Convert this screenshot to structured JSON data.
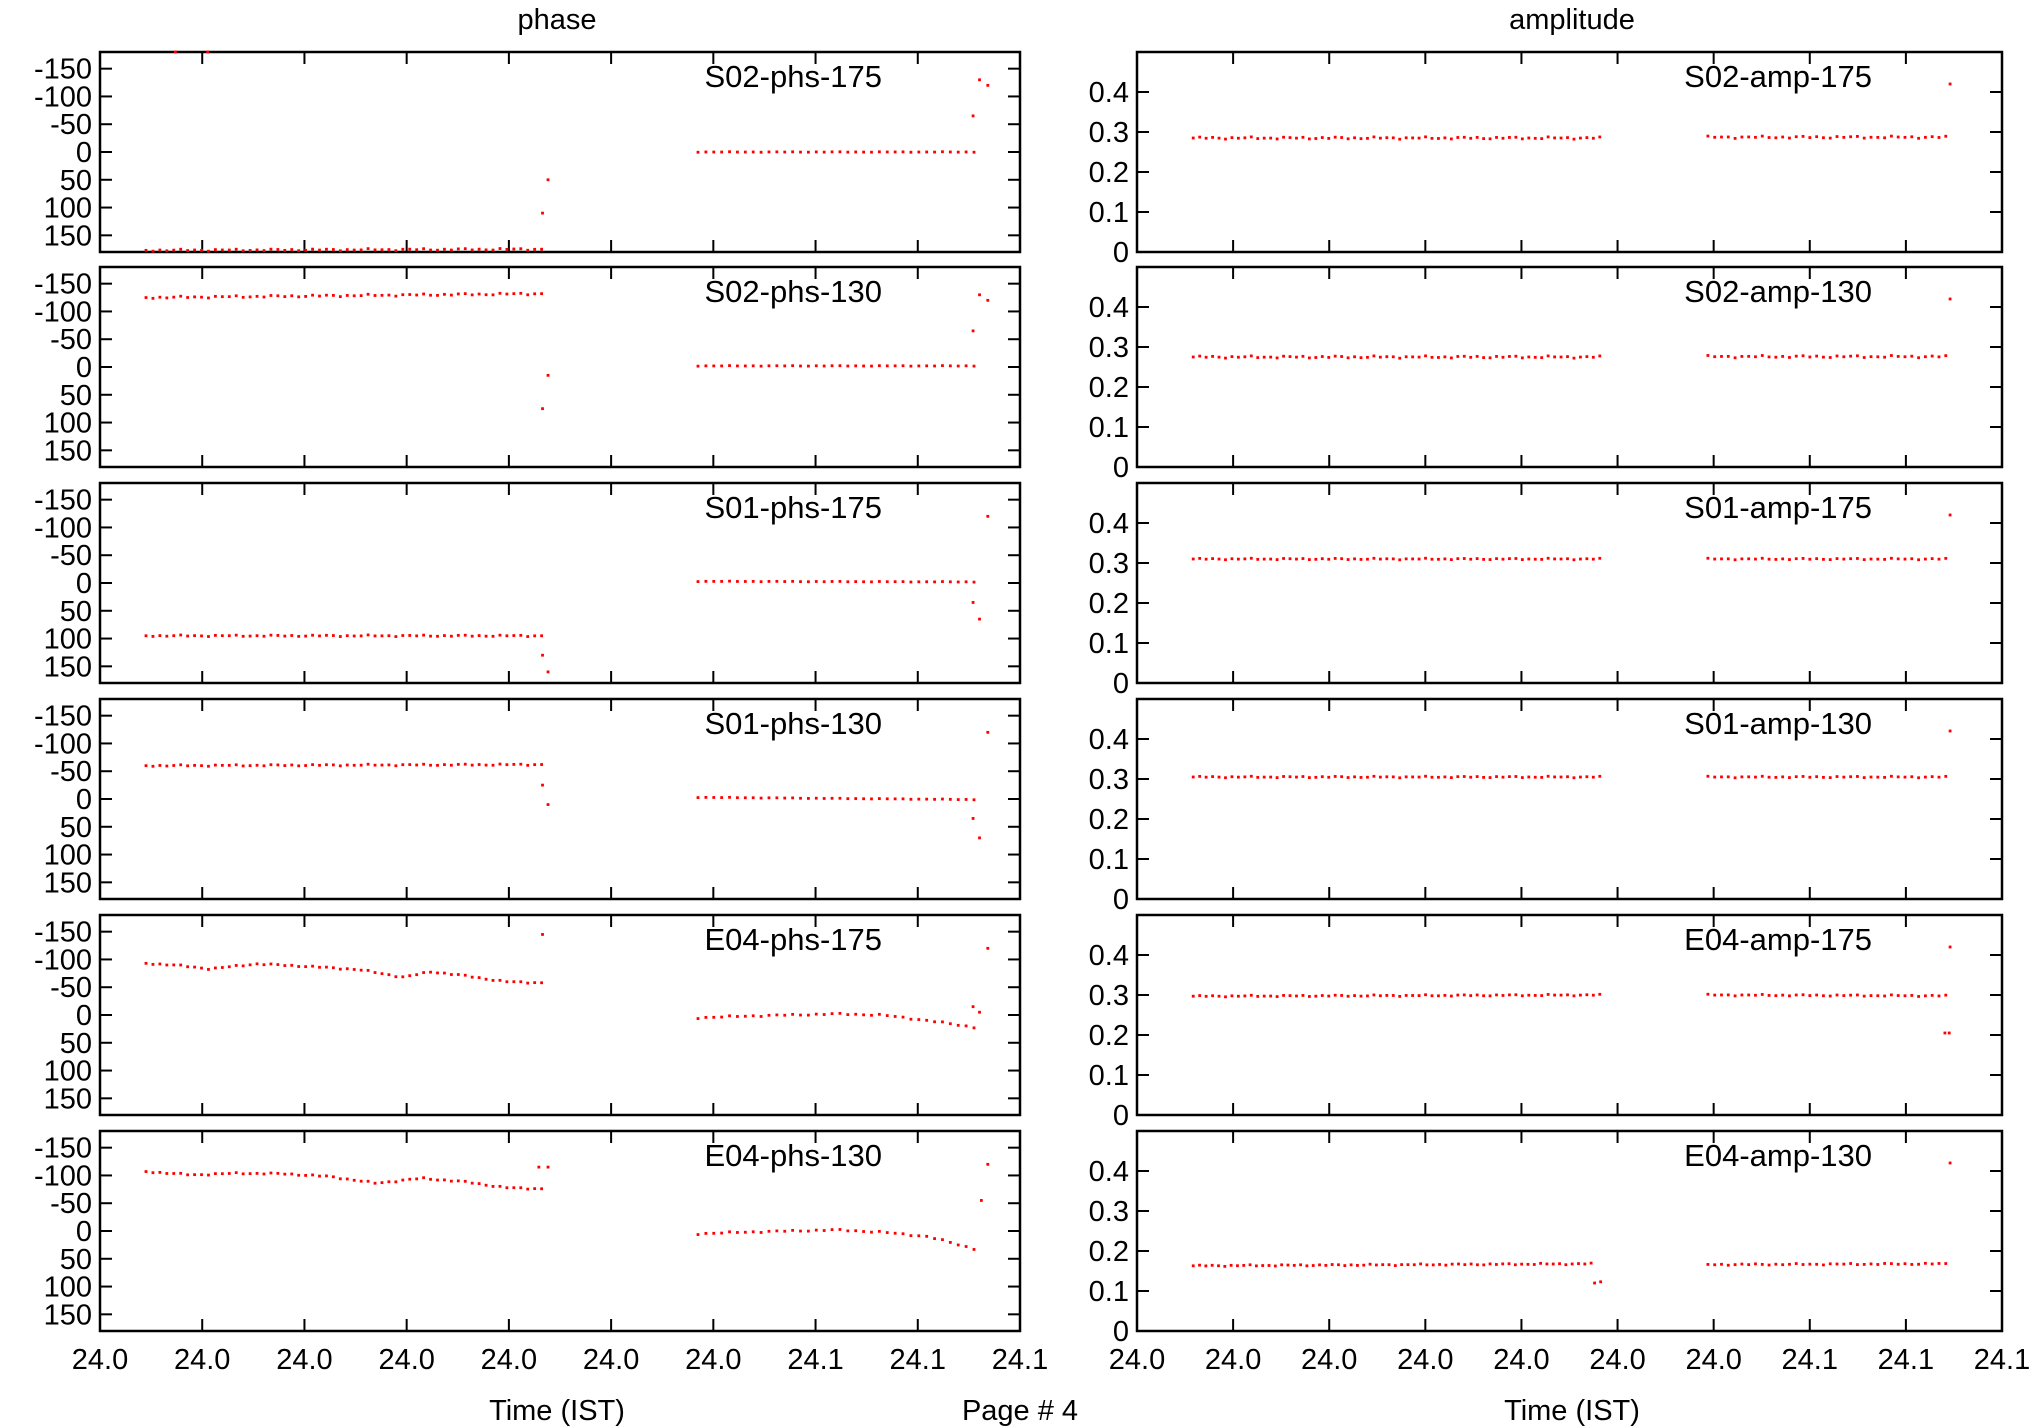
{
  "figure": {
    "column_titles": [
      "phase",
      "amplitude"
    ],
    "xlabel": "Time (IST)",
    "page_label": "Page # 4"
  },
  "chart_data": [
    {
      "type": "scatter",
      "column": "phase",
      "key": "S02-phs-175",
      "ylim": [
        180,
        -180
      ],
      "y_ticks": [
        "-150",
        "-100",
        "-50",
        "0",
        "50",
        "100",
        "150"
      ],
      "x_ticks": [
        "24.0",
        "24.0",
        "24.0",
        "24.0",
        "24.0",
        "24.0",
        "24.0",
        "24.1",
        "24.1",
        "24.1"
      ],
      "xlim": [
        0,
        1
      ],
      "color": "#ff0000",
      "series": [
        {
          "name": "S02-phs-175",
          "x_start": 0.05,
          "x_end": 0.48,
          "n": 58,
          "y_start": 177,
          "y_end": 175,
          "wiggle": 2
        },
        {
          "name": "S02-phs-175",
          "x_start": 0.65,
          "x_end": 0.95,
          "n": 36,
          "y_start": 0,
          "y_end": 0,
          "wiggle": 0.5
        },
        {
          "name": "S02-phs-175",
          "points": [
            [
              0.082,
              -180
            ],
            [
              0.117,
              -180
            ],
            [
              0.481,
              110
            ],
            [
              0.487,
              50
            ],
            [
              0.949,
              -65
            ],
            [
              0.956,
              -130
            ],
            [
              0.965,
              -120
            ]
          ]
        }
      ]
    },
    {
      "type": "scatter",
      "column": "amplitude",
      "key": "S02-amp-175",
      "ylim": [
        0,
        0.5
      ],
      "y_ticks": [
        "0",
        "0.1",
        "0.2",
        "0.3",
        "0.4"
      ],
      "x_ticks": [
        "24.0",
        "24.0",
        "24.0",
        "24.0",
        "24.0",
        "24.0",
        "24.0",
        "24.1",
        "24.1",
        "24.1"
      ],
      "xlim": [
        0,
        1
      ],
      "color": "#ff0000",
      "series": [
        {
          "name": "S02-amp-175",
          "x_start": 0.065,
          "x_end": 0.535,
          "n": 64,
          "y_start": 0.285,
          "y_end": 0.285,
          "wiggle": 0.003
        },
        {
          "name": "S02-amp-175",
          "x_start": 0.66,
          "x_end": 0.935,
          "n": 36,
          "y_start": 0.287,
          "y_end": 0.287,
          "wiggle": 0.003
        },
        {
          "name": "S02-amp-175",
          "points": [
            [
              0.94,
              0.42
            ]
          ]
        }
      ]
    },
    {
      "type": "scatter",
      "column": "phase",
      "key": "S02-phs-130",
      "ylim": [
        180,
        -180
      ],
      "y_ticks": [
        "-150",
        "-100",
        "-50",
        "0",
        "50",
        "100",
        "150"
      ],
      "x_ticks": [
        "24.0",
        "24.0",
        "24.0",
        "24.0",
        "24.0",
        "24.0",
        "24.0",
        "24.1",
        "24.1",
        "24.1"
      ],
      "xlim": [
        0,
        1
      ],
      "color": "#ff0000",
      "series": [
        {
          "name": "S02-phs-130",
          "x_start": 0.05,
          "x_end": 0.48,
          "n": 58,
          "y_start": -125,
          "y_end": -132,
          "wiggle": 2
        },
        {
          "name": "S02-phs-130",
          "x_start": 0.65,
          "x_end": 0.95,
          "n": 36,
          "y_start": -2,
          "y_end": -2,
          "wiggle": 0.5
        },
        {
          "name": "S02-phs-130",
          "points": [
            [
              0.481,
              75
            ],
            [
              0.487,
              15
            ],
            [
              0.949,
              -65
            ],
            [
              0.956,
              -130
            ],
            [
              0.965,
              -120
            ]
          ]
        }
      ]
    },
    {
      "type": "scatter",
      "column": "amplitude",
      "key": "S02-amp-130",
      "ylim": [
        0,
        0.5
      ],
      "y_ticks": [
        "0",
        "0.1",
        "0.2",
        "0.3",
        "0.4"
      ],
      "x_ticks": [
        "24.0",
        "24.0",
        "24.0",
        "24.0",
        "24.0",
        "24.0",
        "24.0",
        "24.1",
        "24.1",
        "24.1"
      ],
      "xlim": [
        0,
        1
      ],
      "color": "#ff0000",
      "series": [
        {
          "name": "S02-amp-130",
          "x_start": 0.065,
          "x_end": 0.535,
          "n": 64,
          "y_start": 0.275,
          "y_end": 0.275,
          "wiggle": 0.003
        },
        {
          "name": "S02-amp-130",
          "x_start": 0.66,
          "x_end": 0.935,
          "n": 36,
          "y_start": 0.276,
          "y_end": 0.276,
          "wiggle": 0.003
        },
        {
          "name": "S02-amp-130",
          "points": [
            [
              0.94,
              0.42
            ]
          ]
        }
      ]
    },
    {
      "type": "scatter",
      "column": "phase",
      "key": "S01-phs-175",
      "ylim": [
        180,
        -180
      ],
      "y_ticks": [
        "-150",
        "-100",
        "-50",
        "0",
        "50",
        "100",
        "150"
      ],
      "x_ticks": [
        "24.0",
        "24.0",
        "24.0",
        "24.0",
        "24.0",
        "24.0",
        "24.0",
        "24.1",
        "24.1",
        "24.1"
      ],
      "xlim": [
        0,
        1
      ],
      "color": "#ff0000",
      "series": [
        {
          "name": "S01-phs-175",
          "x_start": 0.05,
          "x_end": 0.48,
          "n": 58,
          "y_start": 95,
          "y_end": 95,
          "wiggle": 1.5
        },
        {
          "name": "S01-phs-175",
          "x_start": 0.65,
          "x_end": 0.95,
          "n": 36,
          "y_start": -3,
          "y_end": -2,
          "wiggle": 0.5
        },
        {
          "name": "S01-phs-175",
          "points": [
            [
              0.481,
              130
            ],
            [
              0.487,
              160
            ],
            [
              0.949,
              35
            ],
            [
              0.956,
              65
            ],
            [
              0.965,
              -120
            ]
          ]
        }
      ]
    },
    {
      "type": "scatter",
      "column": "amplitude",
      "key": "S01-amp-175",
      "ylim": [
        0,
        0.5
      ],
      "y_ticks": [
        "0",
        "0.1",
        "0.2",
        "0.3",
        "0.4"
      ],
      "x_ticks": [
        "24.0",
        "24.0",
        "24.0",
        "24.0",
        "24.0",
        "24.0",
        "24.0",
        "24.1",
        "24.1",
        "24.1"
      ],
      "xlim": [
        0,
        1
      ],
      "color": "#ff0000",
      "series": [
        {
          "name": "S01-amp-175",
          "x_start": 0.065,
          "x_end": 0.535,
          "n": 64,
          "y_start": 0.31,
          "y_end": 0.31,
          "wiggle": 0.002
        },
        {
          "name": "S01-amp-175",
          "x_start": 0.66,
          "x_end": 0.935,
          "n": 36,
          "y_start": 0.31,
          "y_end": 0.31,
          "wiggle": 0.002
        },
        {
          "name": "S01-amp-175",
          "points": [
            [
              0.94,
              0.42
            ]
          ]
        }
      ]
    },
    {
      "type": "scatter",
      "column": "phase",
      "key": "S01-phs-130",
      "ylim": [
        180,
        -180
      ],
      "y_ticks": [
        "-150",
        "-100",
        "-50",
        "0",
        "50",
        "100",
        "150"
      ],
      "x_ticks": [
        "24.0",
        "24.0",
        "24.0",
        "24.0",
        "24.0",
        "24.0",
        "24.0",
        "24.1",
        "24.1",
        "24.1"
      ],
      "xlim": [
        0,
        1
      ],
      "color": "#ff0000",
      "series": [
        {
          "name": "S01-phs-130",
          "x_start": 0.05,
          "x_end": 0.48,
          "n": 58,
          "y_start": -60,
          "y_end": -62,
          "wiggle": 1.5
        },
        {
          "name": "S01-phs-130",
          "x_start": 0.65,
          "x_end": 0.95,
          "n": 36,
          "y_start": -3,
          "y_end": 1,
          "wiggle": 0.5
        },
        {
          "name": "S01-phs-130",
          "points": [
            [
              0.481,
              -25
            ],
            [
              0.487,
              10
            ],
            [
              0.949,
              35
            ],
            [
              0.956,
              70
            ],
            [
              0.965,
              -120
            ]
          ]
        }
      ]
    },
    {
      "type": "scatter",
      "column": "amplitude",
      "key": "S01-amp-130",
      "ylim": [
        0,
        0.5
      ],
      "y_ticks": [
        "0",
        "0.1",
        "0.2",
        "0.3",
        "0.4"
      ],
      "x_ticks": [
        "24.0",
        "24.0",
        "24.0",
        "24.0",
        "24.0",
        "24.0",
        "24.0",
        "24.1",
        "24.1",
        "24.1"
      ],
      "xlim": [
        0,
        1
      ],
      "color": "#ff0000",
      "series": [
        {
          "name": "S01-amp-130",
          "x_start": 0.065,
          "x_end": 0.535,
          "n": 64,
          "y_start": 0.305,
          "y_end": 0.305,
          "wiggle": 0.002
        },
        {
          "name": "S01-amp-130",
          "x_start": 0.66,
          "x_end": 0.935,
          "n": 36,
          "y_start": 0.305,
          "y_end": 0.305,
          "wiggle": 0.002
        },
        {
          "name": "S01-amp-130",
          "points": [
            [
              0.94,
              0.42
            ]
          ]
        }
      ]
    },
    {
      "type": "scatter",
      "column": "phase",
      "key": "E04-phs-175",
      "ylim": [
        180,
        -180
      ],
      "y_ticks": [
        "-150",
        "-100",
        "-50",
        "0",
        "50",
        "100",
        "150"
      ],
      "x_ticks": [
        "24.0",
        "24.0",
        "24.0",
        "24.0",
        "24.0",
        "24.0",
        "24.0",
        "24.1",
        "24.1",
        "24.1"
      ],
      "xlim": [
        0,
        1
      ],
      "color": "#ff0000",
      "series": [
        {
          "name": "E04-phs-175",
          "x_values": [
            0.05,
            0.08,
            0.12,
            0.17,
            0.22,
            0.28,
            0.33,
            0.36,
            0.4,
            0.44,
            0.48
          ],
          "y_values": [
            -93,
            -90,
            -83,
            -92,
            -88,
            -82,
            -68,
            -78,
            -70,
            -60,
            -58
          ],
          "n": 58
        },
        {
          "name": "E04-phs-175",
          "x_values": [
            0.65,
            0.7,
            0.75,
            0.8,
            0.85,
            0.9,
            0.95
          ],
          "y_values": [
            5,
            2,
            0,
            -2,
            0,
            10,
            22
          ],
          "n": 36
        },
        {
          "name": "E04-phs-175",
          "points": [
            [
              0.481,
              -145
            ],
            [
              0.949,
              -15
            ],
            [
              0.956,
              -5
            ],
            [
              0.965,
              -120
            ]
          ]
        }
      ]
    },
    {
      "type": "scatter",
      "column": "amplitude",
      "key": "E04-amp-175",
      "ylim": [
        0,
        0.5
      ],
      "y_ticks": [
        "0",
        "0.1",
        "0.2",
        "0.3",
        "0.4"
      ],
      "x_ticks": [
        "24.0",
        "24.0",
        "24.0",
        "24.0",
        "24.0",
        "24.0",
        "24.0",
        "24.1",
        "24.1",
        "24.1"
      ],
      "xlim": [
        0,
        1
      ],
      "color": "#ff0000",
      "series": [
        {
          "name": "E04-amp-175",
          "x_start": 0.065,
          "x_end": 0.535,
          "n": 64,
          "y_start": 0.297,
          "y_end": 0.3,
          "wiggle": 0.002
        },
        {
          "name": "E04-amp-175",
          "x_start": 0.66,
          "x_end": 0.935,
          "n": 36,
          "y_start": 0.3,
          "y_end": 0.298,
          "wiggle": 0.002
        },
        {
          "name": "E04-amp-175",
          "points": [
            [
              0.934,
              0.205
            ],
            [
              0.939,
              0.205
            ],
            [
              0.94,
              0.42
            ]
          ]
        }
      ]
    },
    {
      "type": "scatter",
      "column": "phase",
      "key": "E04-phs-130",
      "ylim": [
        180,
        -180
      ],
      "y_ticks": [
        "-150",
        "-100",
        "-50",
        "0",
        "50",
        "100",
        "150"
      ],
      "x_ticks": [
        "24.0",
        "24.0",
        "24.0",
        "24.0",
        "24.0",
        "24.0",
        "24.0",
        "24.1",
        "24.1",
        "24.1"
      ],
      "xlim": [
        0,
        1
      ],
      "color": "#ff0000",
      "series": [
        {
          "name": "E04-phs-130",
          "x_values": [
            0.05,
            0.1,
            0.15,
            0.2,
            0.25,
            0.3,
            0.35,
            0.4,
            0.44,
            0.48
          ],
          "y_values": [
            -107,
            -101,
            -104,
            -103,
            -98,
            -86,
            -95,
            -88,
            -78,
            -76
          ],
          "n": 58
        },
        {
          "name": "E04-phs-130",
          "x_values": [
            0.65,
            0.7,
            0.75,
            0.8,
            0.85,
            0.9,
            0.95
          ],
          "y_values": [
            5,
            2,
            0,
            -2,
            2,
            10,
            32
          ],
          "n": 36
        },
        {
          "name": "E04-phs-130",
          "points": [
            [
              0.477,
              -115
            ],
            [
              0.487,
              -115
            ],
            [
              0.958,
              -55
            ],
            [
              0.965,
              -120
            ]
          ]
        }
      ]
    },
    {
      "type": "scatter",
      "column": "amplitude",
      "key": "E04-amp-130",
      "ylim": [
        0,
        0.5
      ],
      "y_ticks": [
        "0",
        "0.1",
        "0.2",
        "0.3",
        "0.4"
      ],
      "x_ticks": [
        "24.0",
        "24.0",
        "24.0",
        "24.0",
        "24.0",
        "24.0",
        "24.0",
        "24.1",
        "24.1",
        "24.1"
      ],
      "xlim": [
        0,
        1
      ],
      "color": "#ff0000",
      "series": [
        {
          "name": "E04-amp-130",
          "x_start": 0.065,
          "x_end": 0.525,
          "n": 64,
          "y_start": 0.163,
          "y_end": 0.168,
          "wiggle": 0.002
        },
        {
          "name": "E04-amp-130",
          "points": [
            [
              0.529,
              0.12
            ],
            [
              0.536,
              0.123
            ],
            [
              0.94,
              0.42
            ]
          ]
        },
        {
          "name": "E04-amp-130",
          "x_start": 0.66,
          "x_end": 0.935,
          "n": 36,
          "y_start": 0.166,
          "y_end": 0.168,
          "wiggle": 0.002
        }
      ]
    }
  ]
}
